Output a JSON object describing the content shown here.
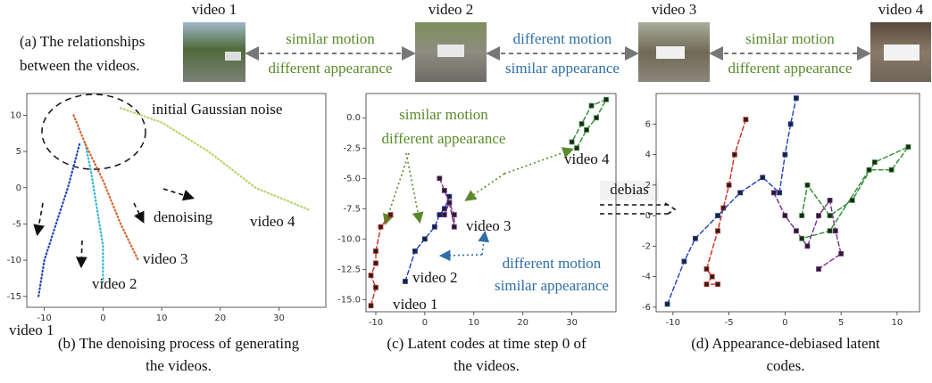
{
  "panel_a": {
    "caption": [
      "(a) The relationships",
      "between the videos."
    ],
    "videos": [
      "video 1",
      "video 2",
      "video 3",
      "video 4"
    ],
    "relations": [
      {
        "motion": "similar motion",
        "motion_color": "#5a8a2a",
        "appearance": "different appearance",
        "appearance_color": "#5a8a2a"
      },
      {
        "motion": "different motion",
        "motion_color": "#2f6fa8",
        "appearance": "similar appearance",
        "appearance_color": "#2f6fa8"
      },
      {
        "motion": "similar motion",
        "motion_color": "#5a8a2a",
        "appearance": "different appearance",
        "appearance_color": "#5a8a2a"
      }
    ]
  },
  "debias": "debias",
  "chart_data": [
    {
      "type": "line",
      "caption": [
        "(b) The denoising process of generating",
        "the videos."
      ],
      "annotations": [
        {
          "text": "initial Gaussian noise",
          "color": "#111111"
        },
        {
          "text": "denoising",
          "color": "#111111"
        }
      ],
      "xlim": [
        -13,
        38
      ],
      "ylim": [
        -16.5,
        13
      ],
      "xticks": [
        -10,
        0,
        10,
        20,
        30
      ],
      "yticks": [
        10,
        5,
        0,
        -5,
        -10,
        -15
      ],
      "dotted": true,
      "series": [
        {
          "name": "video 1",
          "color": "#1f3fbf",
          "x": [
            -4,
            -6,
            -8,
            -10,
            -11
          ],
          "values": [
            6,
            0,
            -5,
            -10,
            -15
          ]
        },
        {
          "name": "video 2",
          "color": "#2bb6d6",
          "x": [
            -3,
            -2,
            -1,
            0,
            0
          ],
          "values": [
            6,
            2,
            -3,
            -8,
            -13
          ]
        },
        {
          "name": "video 3",
          "color": "#d9622b",
          "x": [
            -5,
            -3,
            0,
            3,
            6
          ],
          "values": [
            10,
            6,
            1,
            -5,
            -10
          ]
        },
        {
          "name": "video 4",
          "color": "#b8d46a",
          "x": [
            3,
            10,
            18,
            26,
            35
          ],
          "values": [
            11,
            9,
            5,
            0,
            -3
          ]
        }
      ]
    },
    {
      "type": "line",
      "caption": [
        "(c) Latent codes at time step 0 of",
        "the videos."
      ],
      "annotations": [
        {
          "text": "similar motion",
          "color": "#5a8a2a"
        },
        {
          "text": "different appearance",
          "color": "#5a8a2a"
        },
        {
          "text": "different motion",
          "color": "#2f6fa8"
        },
        {
          "text": "similar appearance",
          "color": "#2f6fa8"
        }
      ],
      "xlim": [
        -12,
        39
      ],
      "ylim": [
        -16,
        2
      ],
      "xticks": [
        -10,
        0,
        10,
        20,
        30
      ],
      "yticks": [
        {
          "value": 0,
          "label": "0.0"
        },
        {
          "value": -2.5,
          "label": "-2.5"
        },
        {
          "value": -5,
          "label": "-5.0"
        },
        {
          "value": -7.5,
          "label": "-7.5"
        },
        {
          "value": -10,
          "label": "-10.0"
        },
        {
          "value": -12.5,
          "label": "-12.5"
        },
        {
          "value": -15,
          "label": "-15.0"
        }
      ],
      "dotted": false,
      "series": [
        {
          "name": "video 1",
          "color": "#cc2b1d",
          "x": [
            -7,
            -9,
            -10,
            -10,
            -11,
            -10,
            -11
          ],
          "values": [
            -8,
            -9,
            -11,
            -12,
            -13,
            -14,
            -15.5
          ]
        },
        {
          "name": "video 2",
          "color": "#1f3fbf",
          "x": [
            -4,
            -2,
            0,
            2,
            3,
            4,
            5
          ],
          "values": [
            -13.5,
            -11,
            -10,
            -9,
            -8,
            -7.5,
            -6.5
          ]
        },
        {
          "name": "video 3",
          "color": "#7a2d8f",
          "x": [
            3,
            4,
            5,
            6,
            6,
            5,
            4
          ],
          "values": [
            -5,
            -6,
            -7,
            -8,
            -9,
            -7,
            -8
          ]
        },
        {
          "name": "video 4",
          "color": "#2e8b2e",
          "x": [
            31,
            33,
            35,
            37,
            34,
            32,
            30
          ],
          "values": [
            -2.5,
            -1,
            0,
            1.5,
            1,
            -0.5,
            -2
          ]
        }
      ]
    },
    {
      "type": "line",
      "caption": [
        "(d) Appearance-debiased latent",
        "codes."
      ],
      "annotations": [],
      "xlim": [
        -11.5,
        12
      ],
      "ylim": [
        -6.3,
        8
      ],
      "xticks": [
        -10,
        -5,
        0,
        5,
        10
      ],
      "yticks": [
        6,
        4,
        2,
        0,
        -2,
        -4,
        -6
      ],
      "dotted": false,
      "series": [
        {
          "color": "#cc2b1d",
          "x": [
            -3.5,
            -4.5,
            -5,
            -5.5,
            -6,
            -7,
            -6.5,
            -7,
            -6
          ],
          "values": [
            6.3,
            4,
            2,
            0.5,
            -1,
            -3.5,
            -4,
            -4.5,
            -4.5
          ]
        },
        {
          "color": "#1f3fbf",
          "x": [
            -10.5,
            -9,
            -8,
            -6,
            -4,
            -2,
            -0.5,
            0,
            0.5,
            1
          ],
          "values": [
            -5.8,
            -3,
            -1.5,
            0,
            1.5,
            2.5,
            1.5,
            4,
            6,
            7.7
          ]
        },
        {
          "color": "#7a2d8f",
          "x": [
            -1,
            0,
            1,
            2,
            3,
            4,
            4.5,
            5,
            3
          ],
          "values": [
            1.5,
            0,
            -1,
            -2,
            0,
            1,
            -1,
            -2.5,
            -3.5
          ]
        },
        {
          "color": "#2e8b2e",
          "x": [
            1.5,
            2,
            4,
            6,
            8,
            11,
            9.5,
            7.5,
            4,
            1.5
          ],
          "values": [
            0,
            2,
            0,
            1,
            3.5,
            4.5,
            3,
            3,
            -1,
            -1.5
          ]
        }
      ]
    }
  ]
}
